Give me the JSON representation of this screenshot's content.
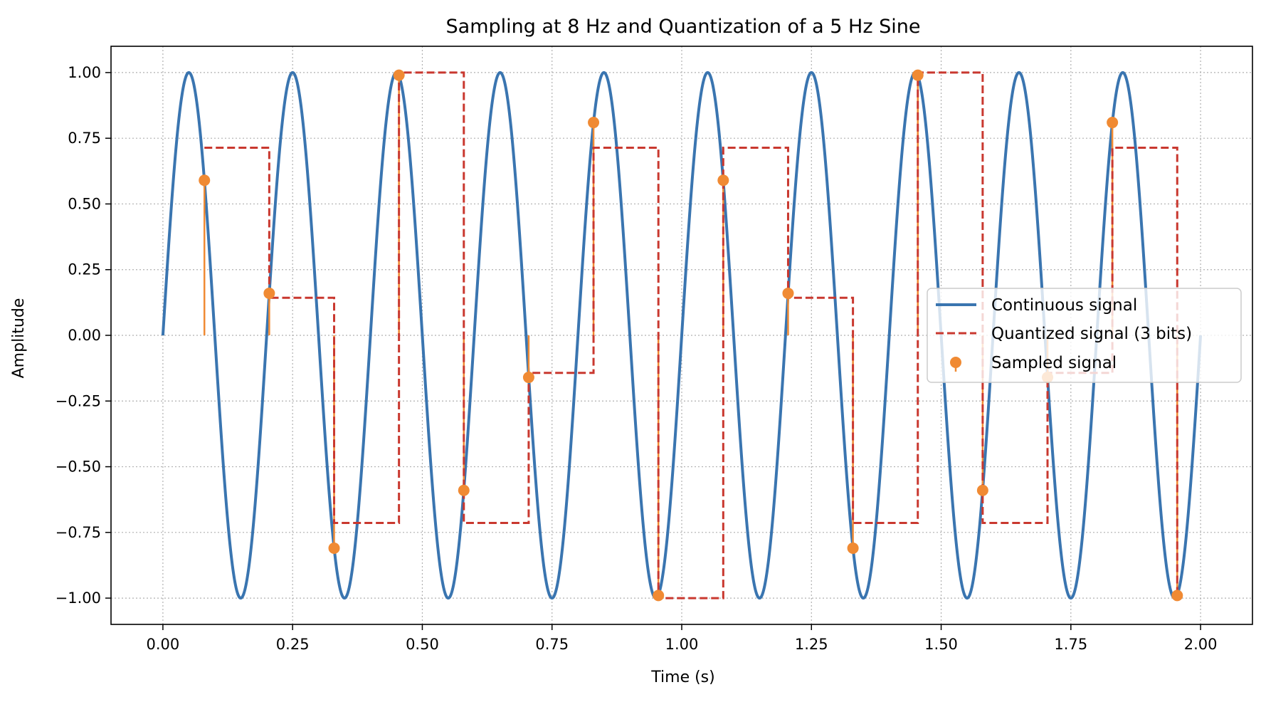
{
  "chart_data": {
    "type": "line",
    "title": "Sampling at 8 Hz and Quantization of a 5 Hz Sine",
    "xlabel": "Time (s)",
    "ylabel": "Amplitude",
    "xlim": [
      -0.1,
      2.1
    ],
    "ylim": [
      -1.1,
      1.1
    ],
    "xticks": [
      0.0,
      0.25,
      0.5,
      0.75,
      1.0,
      1.25,
      1.5,
      1.75,
      2.0
    ],
    "xtick_labels": [
      "0.00",
      "0.25",
      "0.50",
      "0.75",
      "1.00",
      "1.25",
      "1.50",
      "1.75",
      "2.00"
    ],
    "yticks": [
      1.0,
      0.75,
      0.5,
      0.25,
      0.0,
      -0.25,
      -0.5,
      -0.75,
      -1.0
    ],
    "ytick_labels": [
      "1.00",
      "0.75",
      "0.50",
      "0.25",
      "0.00",
      "−0.25",
      "−0.50",
      "−0.75",
      "−1.00"
    ],
    "grid": true,
    "legend_position": "center-right",
    "continuous": {
      "name": "Continuous signal",
      "frequency_hz": 5,
      "t_range": [
        0,
        2
      ],
      "color": "#3a75b0"
    },
    "samples": {
      "name": "Sampled signal",
      "color": "#f08a33",
      "t": [
        0.08,
        0.205,
        0.33,
        0.455,
        0.58,
        0.705,
        0.83,
        0.955,
        1.08,
        1.205,
        1.33,
        1.455,
        1.58,
        1.705,
        1.83,
        1.955
      ],
      "values": [
        0.59,
        0.16,
        -0.81,
        0.99,
        -0.59,
        -0.16,
        0.81,
        -0.99,
        0.59,
        0.16,
        -0.81,
        0.99,
        -0.59,
        -0.16,
        0.81,
        -0.99
      ]
    },
    "quantized": {
      "name": "Quantized signal (3 bits)",
      "color": "#c9382f",
      "t": [
        0.08,
        0.205,
        0.33,
        0.455,
        0.58,
        0.705,
        0.83,
        0.955,
        1.08,
        1.205,
        1.33,
        1.455,
        1.58,
        1.705,
        1.83,
        1.955
      ],
      "values": [
        0.714,
        0.143,
        -0.714,
        1.0,
        -0.714,
        -0.143,
        0.714,
        -1.0,
        0.714,
        0.143,
        -0.714,
        1.0,
        -0.714,
        -0.143,
        0.714,
        -1.0
      ]
    }
  }
}
